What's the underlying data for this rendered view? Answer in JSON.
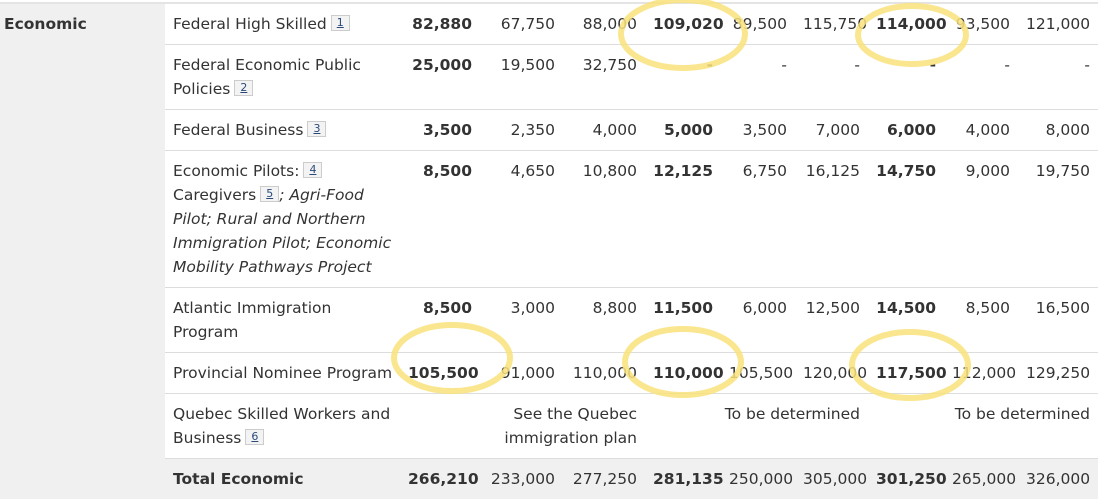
{
  "category": "Economic",
  "rows": [
    {
      "name": "Federal High Skilled",
      "fn": "1",
      "values": [
        "82,880",
        "67,750",
        "88,000",
        "109,020",
        "89,500",
        "115,750",
        "114,000",
        "93,500",
        "121,000"
      ]
    },
    {
      "name": "Federal Economic Public Policies",
      "fn": "2",
      "values": [
        "25,000",
        "19,500",
        "32,750",
        "-",
        "-",
        "-",
        "-",
        "-",
        "-"
      ]
    },
    {
      "name": "Federal Business",
      "fn": "3",
      "values": [
        "3,500",
        "2,350",
        "4,000",
        "5,000",
        "3,500",
        "7,000",
        "6,000",
        "4,000",
        "8,000"
      ]
    },
    {
      "name": "Economic Pilots:",
      "fn": "4",
      "name2": "Caregivers",
      "fn2": "5",
      "name_italic": "; Agri-Food Pilot; Rural and Northern Immigration Pilot; Economic Mobility Pathways Project",
      "values": [
        "8,500",
        "4,650",
        "10,800",
        "12,125",
        "6,750",
        "16,125",
        "14,750",
        "9,000",
        "19,750"
      ]
    },
    {
      "name": "Atlantic Immigration Program",
      "values": [
        "8,500",
        "3,000",
        "8,800",
        "11,500",
        "6,000",
        "12,500",
        "14,500",
        "8,500",
        "16,500"
      ]
    },
    {
      "name": "Provincial Nominee Program",
      "values": [
        "105,500",
        "91,000",
        "110,000",
        "110,000",
        "105,500",
        "120,000",
        "117,500",
        "112,000",
        "129,250"
      ]
    },
    {
      "name": "Quebec Skilled Workers and Business",
      "fn": "6",
      "spans": [
        "See the Quebec immigration plan",
        "To be determined",
        "To be determined"
      ]
    }
  ],
  "total": {
    "name": "Total Economic",
    "values": [
      "266,210",
      "233,000",
      "277,250",
      "281,135",
      "250,000",
      "305,000",
      "301,250",
      "265,000",
      "326,000"
    ]
  },
  "colors": {
    "highlight": "#f9e27a",
    "category_bg": "#f0f0f0"
  }
}
